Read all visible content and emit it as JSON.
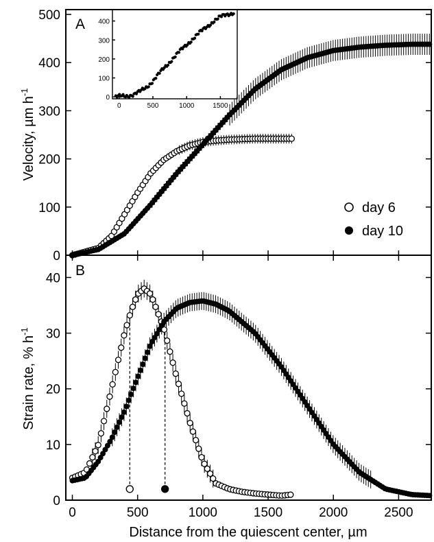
{
  "chart_data": [
    {
      "panel": "A",
      "type": "scatter",
      "title": "",
      "panel_label": "A",
      "ylabel_main": "Velocity, µm h",
      "ylabel_sup": "-1",
      "xlim": [
        -50,
        2750
      ],
      "ylim": [
        0,
        510
      ],
      "yticks": [
        0,
        100,
        200,
        300,
        400,
        500
      ],
      "legend": {
        "placement": "lower-right",
        "entries": [
          "day 6",
          "day 10"
        ]
      },
      "series": [
        {
          "name": "day 6",
          "marker": "open-circle",
          "x": [
            0,
            200,
            300,
            400,
            500,
            600,
            700,
            800,
            900,
            1000,
            1100,
            1200,
            1300,
            1400,
            1500,
            1600,
            1680
          ],
          "y": [
            0,
            15,
            40,
            85,
            130,
            170,
            198,
            216,
            228,
            235,
            238,
            240,
            241,
            242,
            242,
            242,
            242
          ]
        },
        {
          "name": "day 10",
          "marker": "filled-circle",
          "x": [
            0,
            200,
            400,
            600,
            800,
            1000,
            1200,
            1400,
            1600,
            1800,
            2000,
            2200,
            2400,
            2600,
            2750
          ],
          "y": [
            0,
            12,
            45,
            105,
            170,
            230,
            290,
            345,
            385,
            410,
            425,
            432,
            436,
            438,
            438
          ]
        }
      ],
      "inset": {
        "type": "scatter",
        "xlim": [
          -100,
          1750
        ],
        "ylim": [
          -10,
          460
        ],
        "xticks": [
          0,
          500,
          1000,
          1500
        ],
        "yticks": [
          0,
          100,
          200,
          300,
          400
        ],
        "x": [
          -50,
          100,
          200,
          300,
          400,
          500,
          600,
          700,
          800,
          900,
          1000,
          1100,
          1200,
          1300,
          1400,
          1500,
          1600,
          1700
        ],
        "y": [
          0,
          5,
          12,
          25,
          50,
          85,
          125,
          165,
          205,
          240,
          275,
          310,
          340,
          370,
          400,
          420,
          435,
          445
        ]
      }
    },
    {
      "panel": "B",
      "type": "scatter",
      "title": "",
      "panel_label": "B",
      "xlabel": "Distance from the quiescent center,  µm",
      "ylabel_main": "Strain rate, % h",
      "ylabel_sup": "-1",
      "xlim": [
        -50,
        2750
      ],
      "ylim": [
        0,
        44
      ],
      "xticks": [
        0,
        500,
        1000,
        1500,
        2000,
        2500
      ],
      "yticks": [
        0,
        10,
        20,
        30,
        40
      ],
      "series": [
        {
          "name": "day 6",
          "marker": "open-circle",
          "x": [
            0,
            100,
            200,
            300,
            400,
            450,
            500,
            550,
            600,
            650,
            700,
            800,
            900,
            1000,
            1100,
            1200,
            1300,
            1400,
            1500,
            1600,
            1680
          ],
          "y": [
            4,
            5,
            10,
            20,
            30,
            34,
            37,
            38,
            37,
            34,
            31,
            22,
            14,
            7,
            3,
            2,
            1.5,
            1.2,
            1,
            0.8,
            1
          ],
          "marker_peak_line": {
            "x": 440,
            "y": 2
          }
        },
        {
          "name": "day 10",
          "marker": "filled-circle",
          "x": [
            0,
            100,
            200,
            300,
            400,
            500,
            600,
            700,
            800,
            900,
            1000,
            1100,
            1200,
            1400,
            1600,
            1800,
            2000,
            2200,
            2400,
            2600,
            2750
          ],
          "y": [
            3.5,
            4,
            7,
            11,
            16,
            22,
            28,
            32,
            34.5,
            35.5,
            35.8,
            35.2,
            34,
            30,
            24,
            17,
            10,
            5,
            2,
            1,
            0.8
          ],
          "marker_peak_line": {
            "x": 710,
            "y": 2
          }
        }
      ]
    }
  ]
}
